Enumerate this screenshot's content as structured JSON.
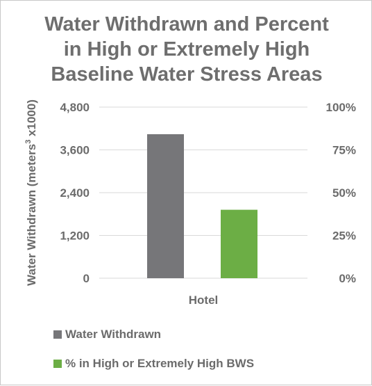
{
  "chart_data": {
    "type": "bar",
    "title_lines": [
      "Water Withdrawn and Percent",
      "in High or Extremely High",
      "Baseline Water Stress Areas"
    ],
    "ylabel": "Water Withdrawn (meters",
    "ylabel_superscript": "3",
    "ylabel_suffix": " x1000)",
    "categories": [
      "Hotel"
    ],
    "y_left": {
      "ticks": [
        "0",
        "1,200",
        "2,400",
        "3,600",
        "4,800"
      ],
      "lim": [
        0,
        4800
      ]
    },
    "y_right": {
      "ticks": [
        "0%",
        "25%",
        "50%",
        "75%",
        "100%"
      ],
      "lim": [
        0,
        100
      ]
    },
    "grid": true,
    "legend_position": "bottom-left",
    "series": [
      {
        "name": "Water Withdrawn",
        "axis": "left",
        "values": [
          4040
        ],
        "color": "#767679"
      },
      {
        "name": "% in High or Extremely High BWS",
        "axis": "right",
        "values": [
          40
        ],
        "color": "#6cae45"
      }
    ]
  }
}
